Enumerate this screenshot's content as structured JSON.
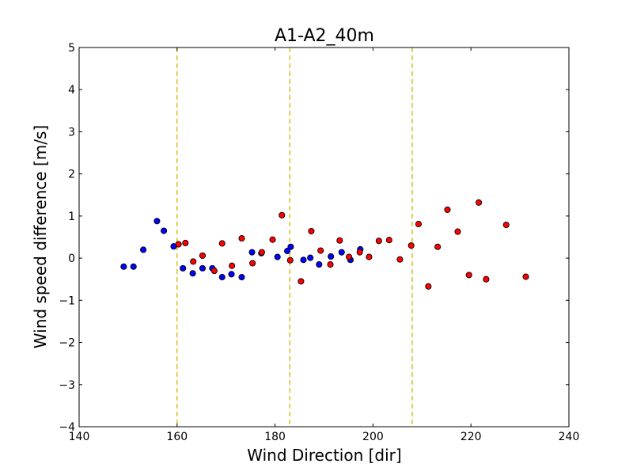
{
  "chart_data": {
    "type": "scatter",
    "title": "A1-A2_40m",
    "xlabel": "Wind Direction [dir]",
    "ylabel": "Wind speed difference [m/s]",
    "xlim": [
      140,
      240
    ],
    "ylim": [
      -4,
      5
    ],
    "xticks": [
      "140",
      "160",
      "180",
      "200",
      "220",
      "240"
    ],
    "yticks": [
      "−4",
      "−3",
      "−2",
      "−1",
      "0",
      "1",
      "2",
      "3",
      "4",
      "5"
    ],
    "grid": false,
    "vlines": {
      "x": [
        160,
        183,
        208
      ],
      "color": "#d4b400",
      "style": "dashed"
    },
    "series": [
      {
        "color": "#0000ff",
        "points": [
          [
            149.1,
            -0.2
          ],
          [
            151.1,
            -0.2
          ],
          [
            153.1,
            0.2
          ],
          [
            155.9,
            0.88
          ],
          [
            157.3,
            0.65
          ],
          [
            159.3,
            0.28
          ],
          [
            161.2,
            -0.24
          ],
          [
            163.2,
            -0.36
          ],
          [
            165.2,
            -0.24
          ],
          [
            167.2,
            -0.24
          ],
          [
            169.2,
            -0.45
          ],
          [
            171.1,
            -0.38
          ],
          [
            173.2,
            -0.45
          ],
          [
            175.3,
            0.14
          ],
          [
            177.2,
            0.12
          ],
          [
            180.5,
            0.03
          ],
          [
            182.5,
            0.17
          ],
          [
            183.2,
            0.27
          ],
          [
            185.8,
            -0.04
          ],
          [
            187.2,
            0.01
          ],
          [
            189.0,
            -0.15
          ],
          [
            191.4,
            0.04
          ],
          [
            193.6,
            0.14
          ],
          [
            195.4,
            -0.04
          ],
          [
            197.4,
            0.21
          ]
        ]
      },
      {
        "color": "#ff0000",
        "points": [
          [
            160.3,
            0.33
          ],
          [
            161.7,
            0.36
          ],
          [
            163.3,
            -0.08
          ],
          [
            165.2,
            0.06
          ],
          [
            167.6,
            -0.3
          ],
          [
            169.2,
            0.35
          ],
          [
            171.2,
            -0.18
          ],
          [
            173.2,
            0.47
          ],
          [
            175.4,
            -0.12
          ],
          [
            177.3,
            0.14
          ],
          [
            179.5,
            0.44
          ],
          [
            181.4,
            1.02
          ],
          [
            183.1,
            -0.05
          ],
          [
            185.3,
            -0.55
          ],
          [
            187.4,
            0.64
          ],
          [
            189.3,
            0.18
          ],
          [
            191.3,
            -0.15
          ],
          [
            193.2,
            0.42
          ],
          [
            195.1,
            0.03
          ],
          [
            197.3,
            0.14
          ],
          [
            199.2,
            0.03
          ],
          [
            201.2,
            0.41
          ],
          [
            203.3,
            0.43
          ],
          [
            205.5,
            -0.03
          ],
          [
            207.8,
            0.3
          ],
          [
            209.3,
            0.81
          ],
          [
            211.3,
            -0.67
          ],
          [
            213.2,
            0.27
          ],
          [
            215.2,
            1.15
          ],
          [
            217.3,
            0.63
          ],
          [
            219.6,
            -0.4
          ],
          [
            221.6,
            1.32
          ],
          [
            223.1,
            -0.5
          ],
          [
            227.2,
            0.79
          ],
          [
            231.2,
            -0.44
          ]
        ]
      }
    ]
  }
}
